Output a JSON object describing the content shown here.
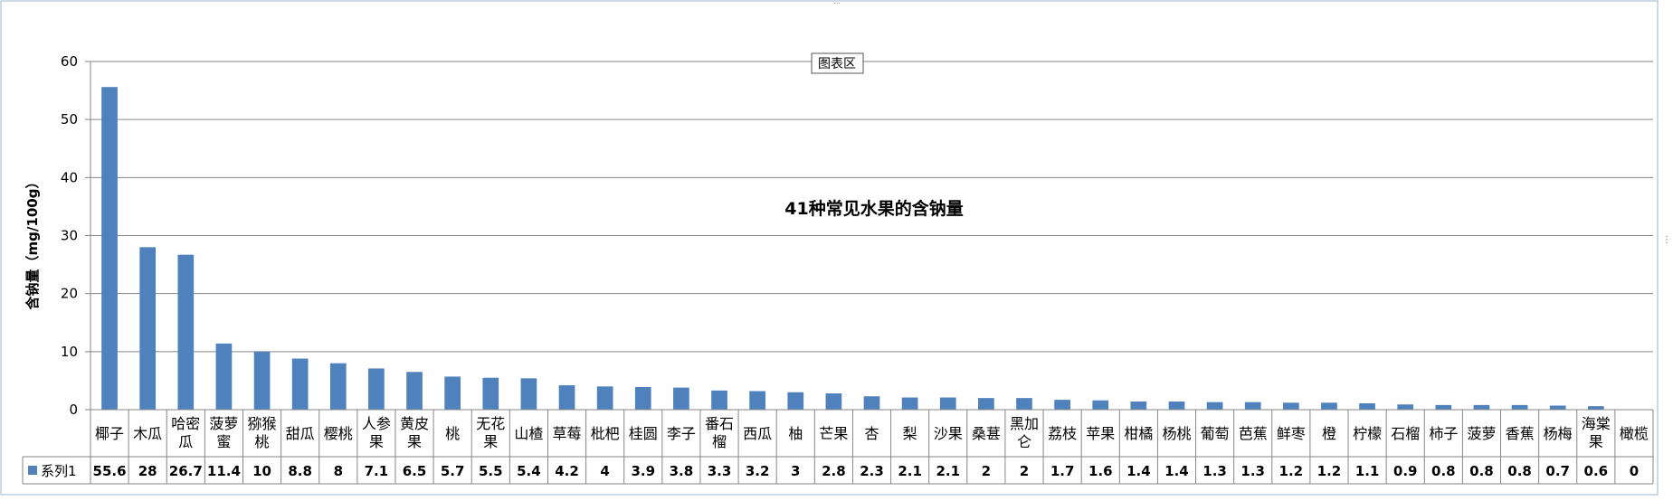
{
  "chart_area_label": "图表区",
  "chart_data": {
    "type": "bar",
    "title": "41种常见水果的含钠量",
    "xlabel": "",
    "ylabel": "含钠量（mg/100g）",
    "ylim": [
      0,
      60
    ],
    "yticks": [
      0,
      10,
      20,
      30,
      40,
      50,
      60
    ],
    "grid": true,
    "legend": "data-table",
    "series_color": "#4f81bd",
    "categories": [
      [
        "椰子"
      ],
      [
        "木瓜"
      ],
      [
        "哈密",
        "瓜"
      ],
      [
        "菠萝",
        "蜜"
      ],
      [
        "猕猴",
        "桃"
      ],
      [
        "甜瓜"
      ],
      [
        "樱桃"
      ],
      [
        "人参",
        "果"
      ],
      [
        "黄皮",
        "果"
      ],
      [
        "桃"
      ],
      [
        "无花",
        "果"
      ],
      [
        "山楂"
      ],
      [
        "草莓"
      ],
      [
        "枇杷"
      ],
      [
        "桂圆"
      ],
      [
        "李子"
      ],
      [
        "番石",
        "榴"
      ],
      [
        "西瓜"
      ],
      [
        "柚"
      ],
      [
        "芒果"
      ],
      [
        "杏"
      ],
      [
        "梨"
      ],
      [
        "沙果"
      ],
      [
        "桑葚"
      ],
      [
        "黑加",
        "仑"
      ],
      [
        "荔枝"
      ],
      [
        "苹果"
      ],
      [
        "柑橘"
      ],
      [
        "杨桃"
      ],
      [
        "葡萄"
      ],
      [
        "芭蕉"
      ],
      [
        "鲜枣"
      ],
      [
        "橙"
      ],
      [
        "柠檬"
      ],
      [
        "石榴"
      ],
      [
        "柿子"
      ],
      [
        "菠萝"
      ],
      [
        "香蕉"
      ],
      [
        "杨梅"
      ],
      [
        "海棠",
        "果"
      ],
      [
        "橄榄"
      ]
    ],
    "series": [
      {
        "name": "系列1",
        "values": [
          55.6,
          28,
          26.7,
          11.4,
          10,
          8.8,
          8,
          7.1,
          6.5,
          5.7,
          5.5,
          5.4,
          4.2,
          4,
          3.9,
          3.8,
          3.3,
          3.2,
          3,
          2.8,
          2.3,
          2.1,
          2.1,
          2,
          2,
          1.7,
          1.6,
          1.4,
          1.4,
          1.3,
          1.3,
          1.2,
          1.2,
          1.1,
          0.9,
          0.8,
          0.8,
          0.8,
          0.7,
          0.6,
          0
        ]
      }
    ]
  }
}
